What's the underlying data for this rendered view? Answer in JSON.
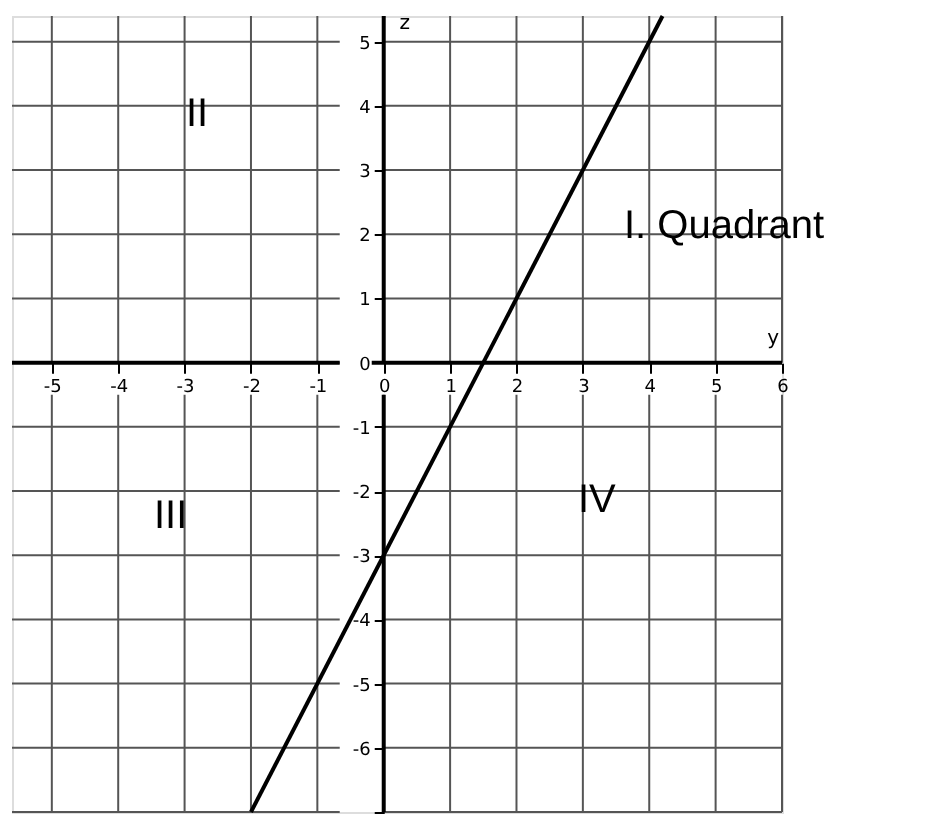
{
  "chart_data": {
    "type": "line",
    "xlabel": "y",
    "ylabel": "z",
    "x": [
      -2,
      4.2
    ],
    "series": [
      {
        "color": "#000000",
        "values": [
          -7,
          5.4
        ]
      }
    ],
    "xlim": [
      -5.6,
      6
    ],
    "ylim": [
      -7,
      5.4
    ],
    "xticks": [
      -5,
      -4,
      -3,
      -2,
      -1,
      0,
      1,
      2,
      3,
      4,
      5,
      6
    ],
    "yticks": [
      {
        "value": -7,
        "label": null
      },
      -6,
      -5,
      -4,
      -3,
      -2,
      -1,
      0,
      1,
      2,
      3,
      4,
      5
    ],
    "grid": true,
    "marker": "none",
    "line_style": "solid",
    "annotations": [
      "II",
      "I. Quadrant",
      "III",
      "IV"
    ]
  }
}
